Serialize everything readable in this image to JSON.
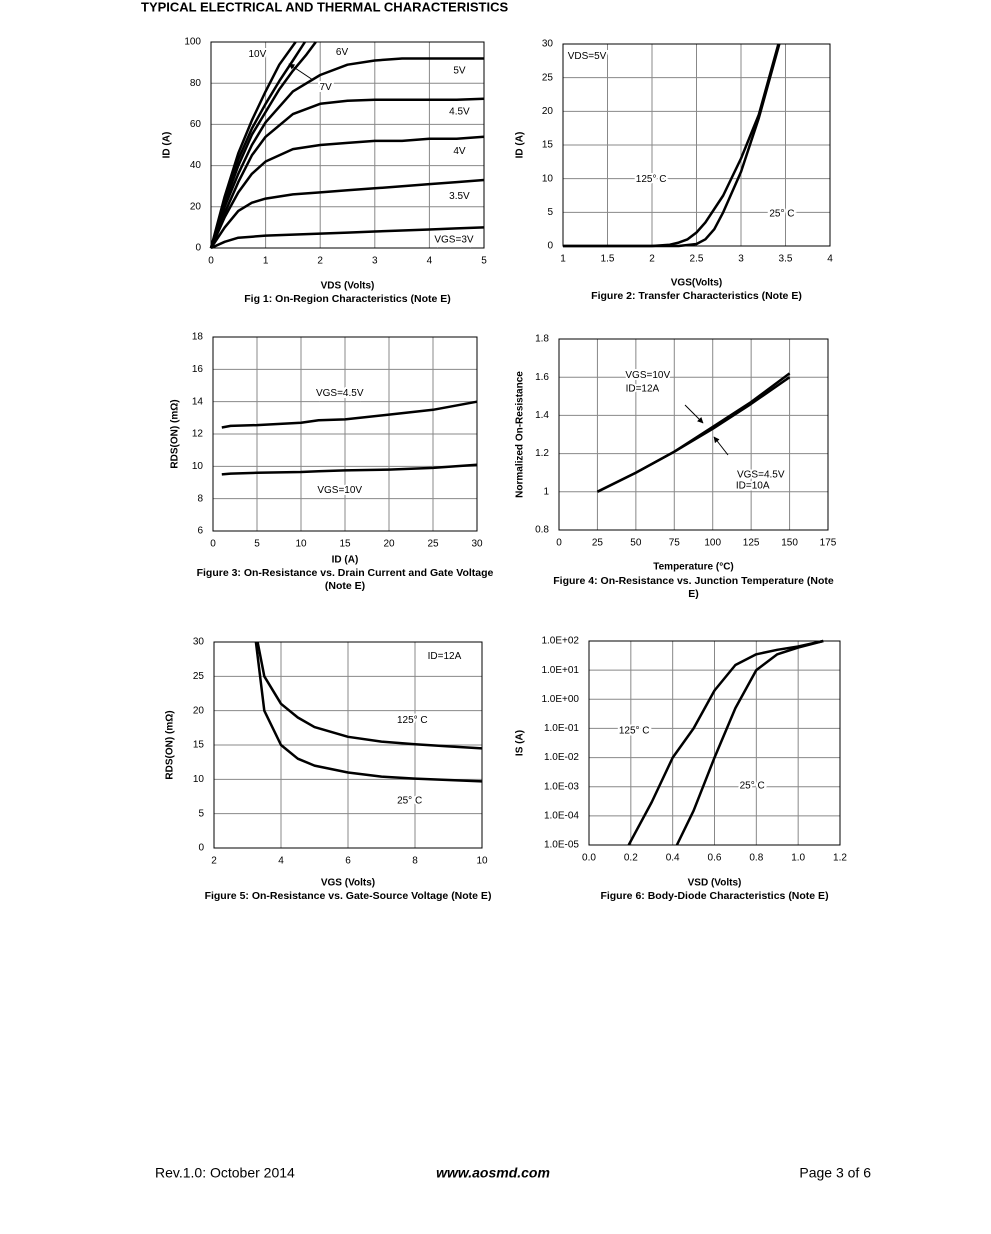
{
  "header": {
    "title": "TYPICAL ELECTRICAL AND THERMAL CHARACTERISTICS"
  },
  "chart_data": [
    {
      "type": "line",
      "title": "Fig 1: On-Region Characteristics (Note E)",
      "xlabel": "VDS (Volts)",
      "ylabel": "ID (A)",
      "xlim": [
        0,
        5
      ],
      "ylim": [
        0,
        100
      ],
      "xticks": [
        0,
        1,
        2,
        3,
        4,
        5
      ],
      "yticks": [
        0,
        20,
        40,
        60,
        80,
        100
      ],
      "grid": true,
      "series": [
        {
          "name": "10V",
          "color": "#000000",
          "x": [
            0,
            0.25,
            0.5,
            0.75,
            1,
            1.25,
            1.55
          ],
          "values": [
            0,
            25,
            46,
            62,
            76,
            89,
            100
          ]
        },
        {
          "name": "7V",
          "color": "#000000",
          "x": [
            0,
            0.25,
            0.5,
            0.75,
            1,
            1.25,
            1.5,
            1.72
          ],
          "values": [
            0,
            23,
            43,
            58,
            70,
            81,
            91,
            100
          ]
        },
        {
          "name": "6V",
          "color": "#000000",
          "x": [
            0,
            0.25,
            0.5,
            0.75,
            1,
            1.25,
            1.5,
            1.75,
            1.92
          ],
          "values": [
            0,
            22,
            40,
            55,
            66,
            77,
            86,
            94,
            100
          ]
        },
        {
          "name": "5V",
          "color": "#000000",
          "x": [
            0,
            0.25,
            0.5,
            0.75,
            1,
            1.5,
            2,
            2.5,
            3,
            3.5,
            4,
            4.5,
            5
          ],
          "values": [
            0,
            20,
            36,
            50,
            61,
            76,
            84,
            89,
            91,
            92,
            92,
            92,
            92
          ]
        },
        {
          "name": "4.5V",
          "color": "#000000",
          "x": [
            0,
            0.25,
            0.5,
            0.75,
            1,
            1.5,
            2,
            2.5,
            3,
            3.5,
            4,
            4.5,
            5
          ],
          "values": [
            0,
            17,
            32,
            45,
            54,
            65,
            70,
            71.5,
            72,
            72,
            72,
            72,
            72.5
          ]
        },
        {
          "name": "4V",
          "color": "#000000",
          "x": [
            0,
            0.25,
            0.5,
            0.75,
            1,
            1.5,
            2,
            2.5,
            3,
            3.5,
            4,
            4.5,
            5
          ],
          "values": [
            0,
            15,
            27,
            36,
            42,
            48,
            50,
            51,
            52,
            52,
            53,
            53,
            54
          ]
        },
        {
          "name": "3.5V",
          "color": "#000000",
          "x": [
            0,
            0.25,
            0.5,
            0.75,
            1,
            1.5,
            2,
            2.5,
            3,
            3.5,
            4,
            4.5,
            5
          ],
          "values": [
            0,
            10,
            18,
            22,
            24,
            26,
            27,
            28,
            29,
            30,
            31,
            32,
            33
          ]
        },
        {
          "name": "VGS=3V",
          "color": "#000000",
          "x": [
            0,
            0.25,
            0.5,
            0.75,
            1,
            1.5,
            2,
            2.5,
            3,
            3.5,
            4,
            4.5,
            5
          ],
          "values": [
            0,
            3,
            5,
            5.5,
            6,
            6.5,
            7,
            7.5,
            8,
            8.5,
            9,
            9.5,
            10
          ]
        }
      ]
    },
    {
      "type": "line",
      "title": "Figure 2: Transfer Characteristics (Note E)",
      "xlabel": "VGS(Volts)",
      "ylabel": "ID (A)",
      "xlim": [
        1,
        4
      ],
      "ylim": [
        0,
        30
      ],
      "xticks": [
        1,
        1.5,
        2,
        2.5,
        3,
        3.5,
        4
      ],
      "yticks": [
        0,
        5,
        10,
        15,
        20,
        25,
        30
      ],
      "grid": true,
      "annotations": [
        "VDS=5V"
      ],
      "series": [
        {
          "name": "125° C",
          "color": "#000000",
          "x": [
            1,
            2,
            2.2,
            2.3,
            2.4,
            2.5,
            2.6,
            2.8,
            3,
            3.2,
            3.42
          ],
          "values": [
            0,
            0,
            0.2,
            0.5,
            1,
            2,
            3.5,
            7.5,
            13,
            19.5,
            30
          ]
        },
        {
          "name": "25° C",
          "color": "#000000",
          "x": [
            1,
            2.3,
            2.5,
            2.6,
            2.7,
            2.8,
            3,
            3.2,
            3.43
          ],
          "values": [
            0,
            0,
            0.3,
            1,
            2.5,
            5,
            11,
            19,
            30
          ]
        }
      ]
    },
    {
      "type": "line",
      "title": "Figure 3: On-Resistance vs. Drain Current and Gate Voltage (Note E)",
      "xlabel": "ID (A)",
      "ylabel": "RDS(ON) (mΩ)",
      "xlim": [
        0,
        30
      ],
      "ylim": [
        6,
        18
      ],
      "xticks": [
        0,
        5,
        10,
        15,
        20,
        25,
        30
      ],
      "yticks": [
        6,
        8,
        10,
        12,
        14,
        16,
        18
      ],
      "grid": true,
      "series": [
        {
          "name": "VGS=4.5V",
          "color": "#000000",
          "x": [
            1,
            2,
            5,
            10,
            12,
            15,
            20,
            25,
            30
          ],
          "values": [
            12.4,
            12.5,
            12.55,
            12.7,
            12.85,
            12.9,
            13.2,
            13.5,
            14
          ]
        },
        {
          "name": "VGS=10V",
          "color": "#000000",
          "x": [
            1,
            2,
            5,
            10,
            12,
            15,
            20,
            25,
            30
          ],
          "values": [
            9.5,
            9.55,
            9.6,
            9.65,
            9.7,
            9.75,
            9.8,
            9.9,
            10.1
          ]
        }
      ]
    },
    {
      "type": "line",
      "title": "Figure 4: On-Resistance vs. Junction Temperature (Note E)",
      "xlabel": "Temperature (°C)",
      "ylabel": "Normalized On-Resistance",
      "xlim": [
        0,
        175
      ],
      "ylim": [
        0.8,
        1.8
      ],
      "xticks": [
        0,
        25,
        50,
        75,
        100,
        125,
        150,
        175
      ],
      "yticks": [
        0.8,
        1,
        1.2,
        1.4,
        1.6,
        1.8
      ],
      "grid": true,
      "annotations": [
        "ID=12A",
        "ID=10A"
      ],
      "series": [
        {
          "name": "VGS=10V",
          "color": "#000000",
          "x": [
            25,
            50,
            75,
            100,
            125,
            150
          ],
          "values": [
            1,
            1.1,
            1.21,
            1.34,
            1.47,
            1.62
          ]
        },
        {
          "name": "VGS=4.5V",
          "color": "#000000",
          "x": [
            25,
            50,
            75,
            100,
            125,
            150
          ],
          "values": [
            1,
            1.1,
            1.21,
            1.33,
            1.46,
            1.6
          ]
        }
      ]
    },
    {
      "type": "line",
      "title": "Figure 5: On-Resistance vs. Gate-Source Voltage (Note E)",
      "xlabel": "VGS (Volts)",
      "ylabel": "RDS(ON) (mΩ)",
      "xlim": [
        2,
        10
      ],
      "ylim": [
        0,
        30
      ],
      "xticks": [
        2,
        4,
        6,
        8,
        10
      ],
      "yticks": [
        0,
        5,
        10,
        15,
        20,
        25,
        30
      ],
      "grid": true,
      "annotations": [
        "ID=12A"
      ],
      "series": [
        {
          "name": "125° C",
          "color": "#000000",
          "x": [
            3.3,
            3.5,
            4,
            4.5,
            5,
            6,
            7,
            8,
            9,
            10
          ],
          "values": [
            30,
            25,
            21,
            19,
            17.6,
            16.2,
            15.5,
            15.1,
            14.8,
            14.5
          ]
        },
        {
          "name": "25° C",
          "color": "#000000",
          "x": [
            3.25,
            3.5,
            4,
            4.5,
            5,
            6,
            7,
            8,
            9,
            10
          ],
          "values": [
            30,
            20,
            15,
            13,
            12,
            11,
            10.4,
            10.1,
            9.9,
            9.7
          ]
        }
      ]
    },
    {
      "type": "line",
      "title": "Figure 6: Body-Diode Characteristics (Note E)",
      "xlabel": "VSD (Volts)",
      "ylabel": "IS (A)",
      "xlim": [
        0,
        1.2
      ],
      "ylim": [
        1e-05,
        100
      ],
      "yscale": "log",
      "grid": true,
      "xticks": [
        {
          "value": 0,
          "label": "0.0"
        },
        {
          "value": 0.2,
          "label": "0.2"
        },
        {
          "value": 0.4,
          "label": "0.4"
        },
        {
          "value": 0.6,
          "label": "0.6"
        },
        {
          "value": 0.8,
          "label": "0.8"
        },
        {
          "value": 1,
          "label": "1.0"
        },
        {
          "value": 1.2,
          "label": "1.2"
        }
      ],
      "yticks": [
        {
          "value": 1e-05,
          "label": "1.0E-05"
        },
        {
          "value": 0.0001,
          "label": "1.0E-04"
        },
        {
          "value": 0.001,
          "label": "1.0E-03"
        },
        {
          "value": 0.01,
          "label": "1.0E-02"
        },
        {
          "value": 0.1,
          "label": "1.0E-01"
        },
        {
          "value": 1,
          "label": "1.0E+00"
        },
        {
          "value": 10,
          "label": "1.0E+01"
        },
        {
          "value": 100,
          "label": "1.0E+02"
        }
      ],
      "series": [
        {
          "name": "125° C",
          "color": "#000000",
          "x": [
            0.19,
            0.3,
            0.4,
            0.5,
            0.6,
            0.7,
            0.8,
            0.9,
            1,
            1.12
          ],
          "values": [
            1e-05,
            0.0003,
            0.01,
            0.1,
            2,
            15,
            35,
            50,
            65,
            100
          ]
        },
        {
          "name": "25° C",
          "color": "#000000",
          "x": [
            0.42,
            0.5,
            0.6,
            0.7,
            0.8,
            0.9,
            1,
            1.12
          ],
          "values": [
            1e-05,
            0.00015,
            0.01,
            0.5,
            10,
            35,
            60,
            100
          ]
        }
      ]
    }
  ],
  "footer": {
    "revision": "Rev.1.0: October 2014",
    "url": "www.aosmd.com",
    "page": "Page 3 of 6"
  }
}
